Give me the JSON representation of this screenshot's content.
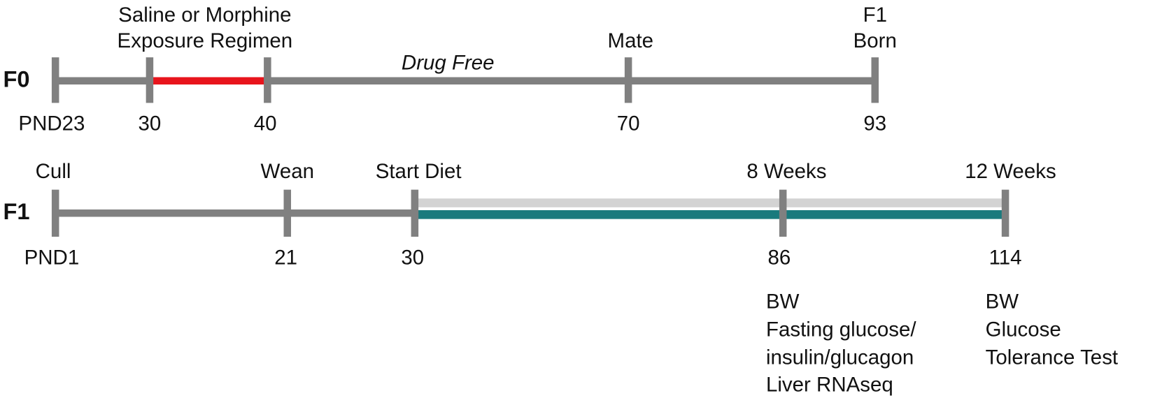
{
  "rows": [
    {
      "label": "F0",
      "note": "Drug Free",
      "ticks": [
        "PND23",
        "30",
        "40",
        "70",
        "93"
      ],
      "headings": [
        [
          "Saline or Morphine",
          "Exposure Regimen"
        ],
        [
          "Mate"
        ],
        [
          "F1",
          "Born"
        ]
      ]
    },
    {
      "label": "F1",
      "ticks": [
        "PND1",
        "21",
        "30",
        "86",
        "114"
      ],
      "headings": [
        [
          "Cull"
        ],
        [
          "Wean"
        ],
        [
          "Start Diet"
        ],
        [
          "8 Weeks"
        ],
        [
          "12 Weeks"
        ]
      ],
      "outcomes": [
        [
          "BW",
          "Fasting glucose/",
          "insulin/glucagon",
          "Liver RNAseq"
        ],
        [
          "BW",
          "Glucose",
          "Tolerance Test"
        ]
      ]
    }
  ]
}
